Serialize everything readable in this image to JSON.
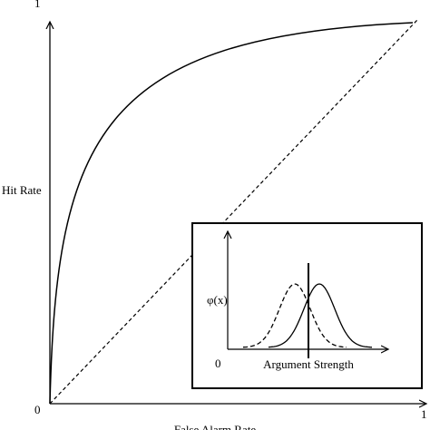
{
  "axes": {
    "y_label": "Hit Rate",
    "x_label": "False Alarm Rate",
    "origin": "0",
    "y_max": "1",
    "x_max": "1"
  },
  "inset": {
    "y_label": "φ(x)",
    "origin": "0",
    "x_label": "Argument Strength"
  }
}
